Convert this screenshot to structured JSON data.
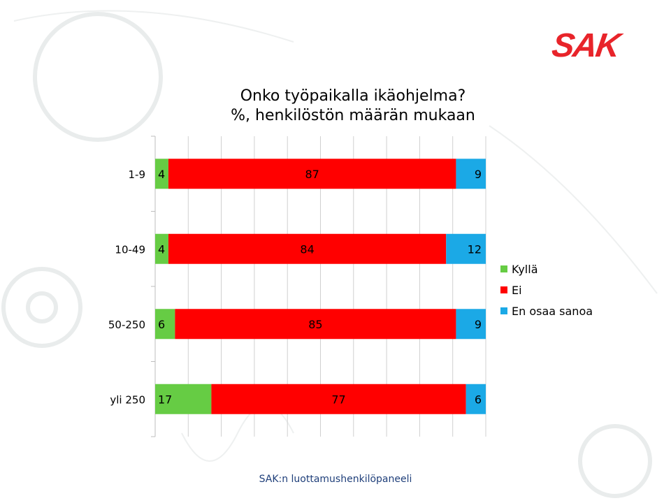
{
  "logo_text": "SAK",
  "title_line1": "Onko työpaikalla ikäohjelma?",
  "title_line2": "%, henkilöstön määrän mukaan",
  "footer": "SAK:n luottamushenkilöpaneeli",
  "colors": {
    "kylla": "#66cc44",
    "ei": "#ff0000",
    "eos": "#1ba9e6",
    "brand": "#e8242a"
  },
  "chart_data": {
    "type": "bar",
    "orientation": "horizontal",
    "stacked": true,
    "title": "Onko työpaikalla ikäohjelma? %, henkilöstön määrän mukaan",
    "categories": [
      "1-9",
      "10-49",
      "50-250",
      "yli 250"
    ],
    "series": [
      {
        "name": "Kyllä",
        "values": [
          4,
          4,
          6,
          17
        ]
      },
      {
        "name": "Ei",
        "values": [
          87,
          84,
          85,
          77
        ]
      },
      {
        "name": "En osaa sanoa",
        "values": [
          9,
          12,
          9,
          6
        ]
      }
    ],
    "xlim": [
      0,
      100
    ],
    "grid": true,
    "legend": "right",
    "data_labels": true
  },
  "legend": {
    "items": [
      {
        "label": "Kyllä"
      },
      {
        "label": "Ei"
      },
      {
        "label": "En osaa sanoa"
      }
    ]
  }
}
